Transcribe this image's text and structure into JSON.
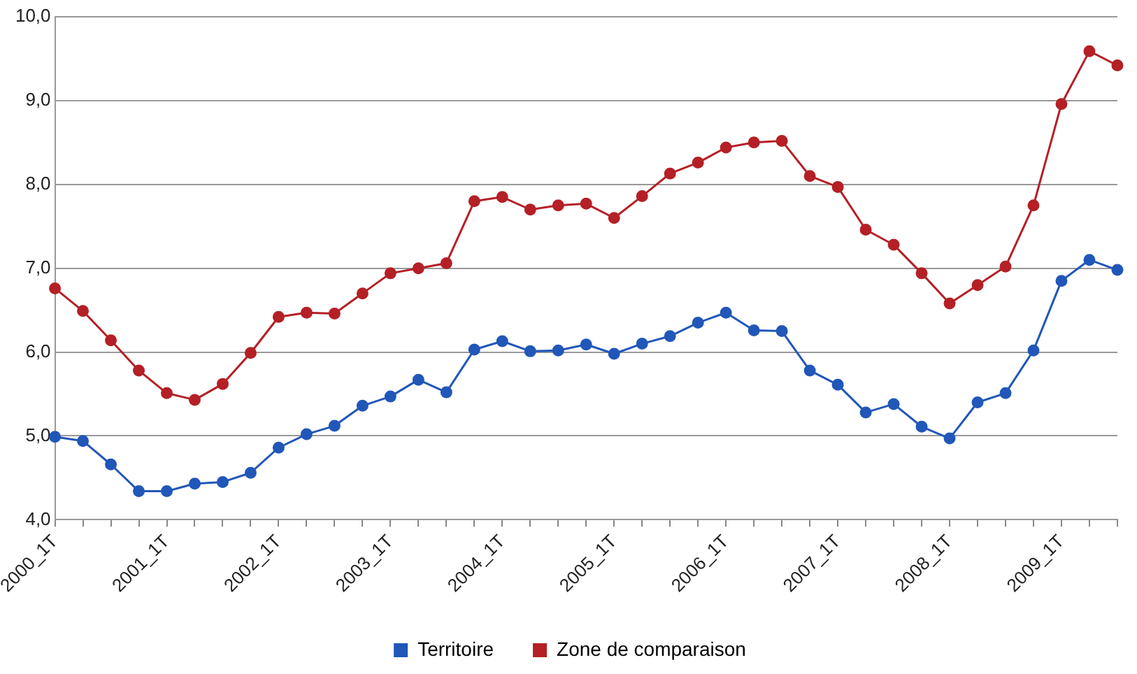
{
  "chart_data": {
    "type": "line",
    "categories": [
      "2000_1T",
      null,
      null,
      null,
      "2001_1T",
      null,
      null,
      null,
      "2002_1T",
      null,
      null,
      null,
      "2003_1T",
      null,
      null,
      null,
      "2004_1T",
      null,
      null,
      null,
      "2005_1T",
      null,
      null,
      null,
      "2006_1T",
      null,
      null,
      null,
      "2007_1T",
      null,
      null,
      null,
      "2008_1T",
      null,
      null,
      null,
      "2009_1T",
      null,
      null
    ],
    "series": [
      {
        "name": "Territoire",
        "color": "#2157b8",
        "values": [
          4.99,
          4.94,
          4.66,
          4.34,
          4.34,
          4.43,
          4.45,
          4.56,
          4.86,
          5.02,
          5.12,
          5.36,
          5.47,
          5.67,
          5.52,
          6.03,
          6.13,
          6.01,
          6.02,
          6.09,
          5.98,
          6.1,
          6.19,
          6.35,
          6.47,
          6.26,
          6.25,
          5.78,
          5.61,
          5.28,
          5.38,
          5.11,
          4.97,
          5.4,
          5.51,
          6.02,
          6.85,
          7.1,
          6.98
        ]
      },
      {
        "name": "Zone de comparaison",
        "color": "#b42026",
        "values": [
          6.76,
          6.49,
          6.14,
          5.78,
          5.51,
          5.43,
          5.62,
          5.99,
          6.42,
          6.47,
          6.46,
          6.7,
          6.94,
          7.0,
          7.06,
          7.8,
          7.85,
          7.7,
          7.75,
          7.77,
          7.6,
          7.86,
          8.13,
          8.26,
          8.44,
          8.5,
          8.52,
          8.1,
          7.97,
          7.46,
          7.28,
          6.94,
          6.58,
          6.8,
          7.02,
          7.75,
          8.96,
          9.59,
          9.42
        ]
      }
    ],
    "ylim": [
      4,
      10
    ],
    "yticks": [
      {
        "value": 4,
        "label": "4,0"
      },
      {
        "value": 5,
        "label": "5,0"
      },
      {
        "value": 6,
        "label": "6,0"
      },
      {
        "value": 7,
        "label": "7,0"
      },
      {
        "value": 8,
        "label": "8,0"
      },
      {
        "value": 9,
        "label": "9,0"
      },
      {
        "value": 10,
        "label": "10,0"
      }
    ],
    "grid": "y",
    "legend": "bottom",
    "marker": "circle",
    "line_style": "solid"
  }
}
